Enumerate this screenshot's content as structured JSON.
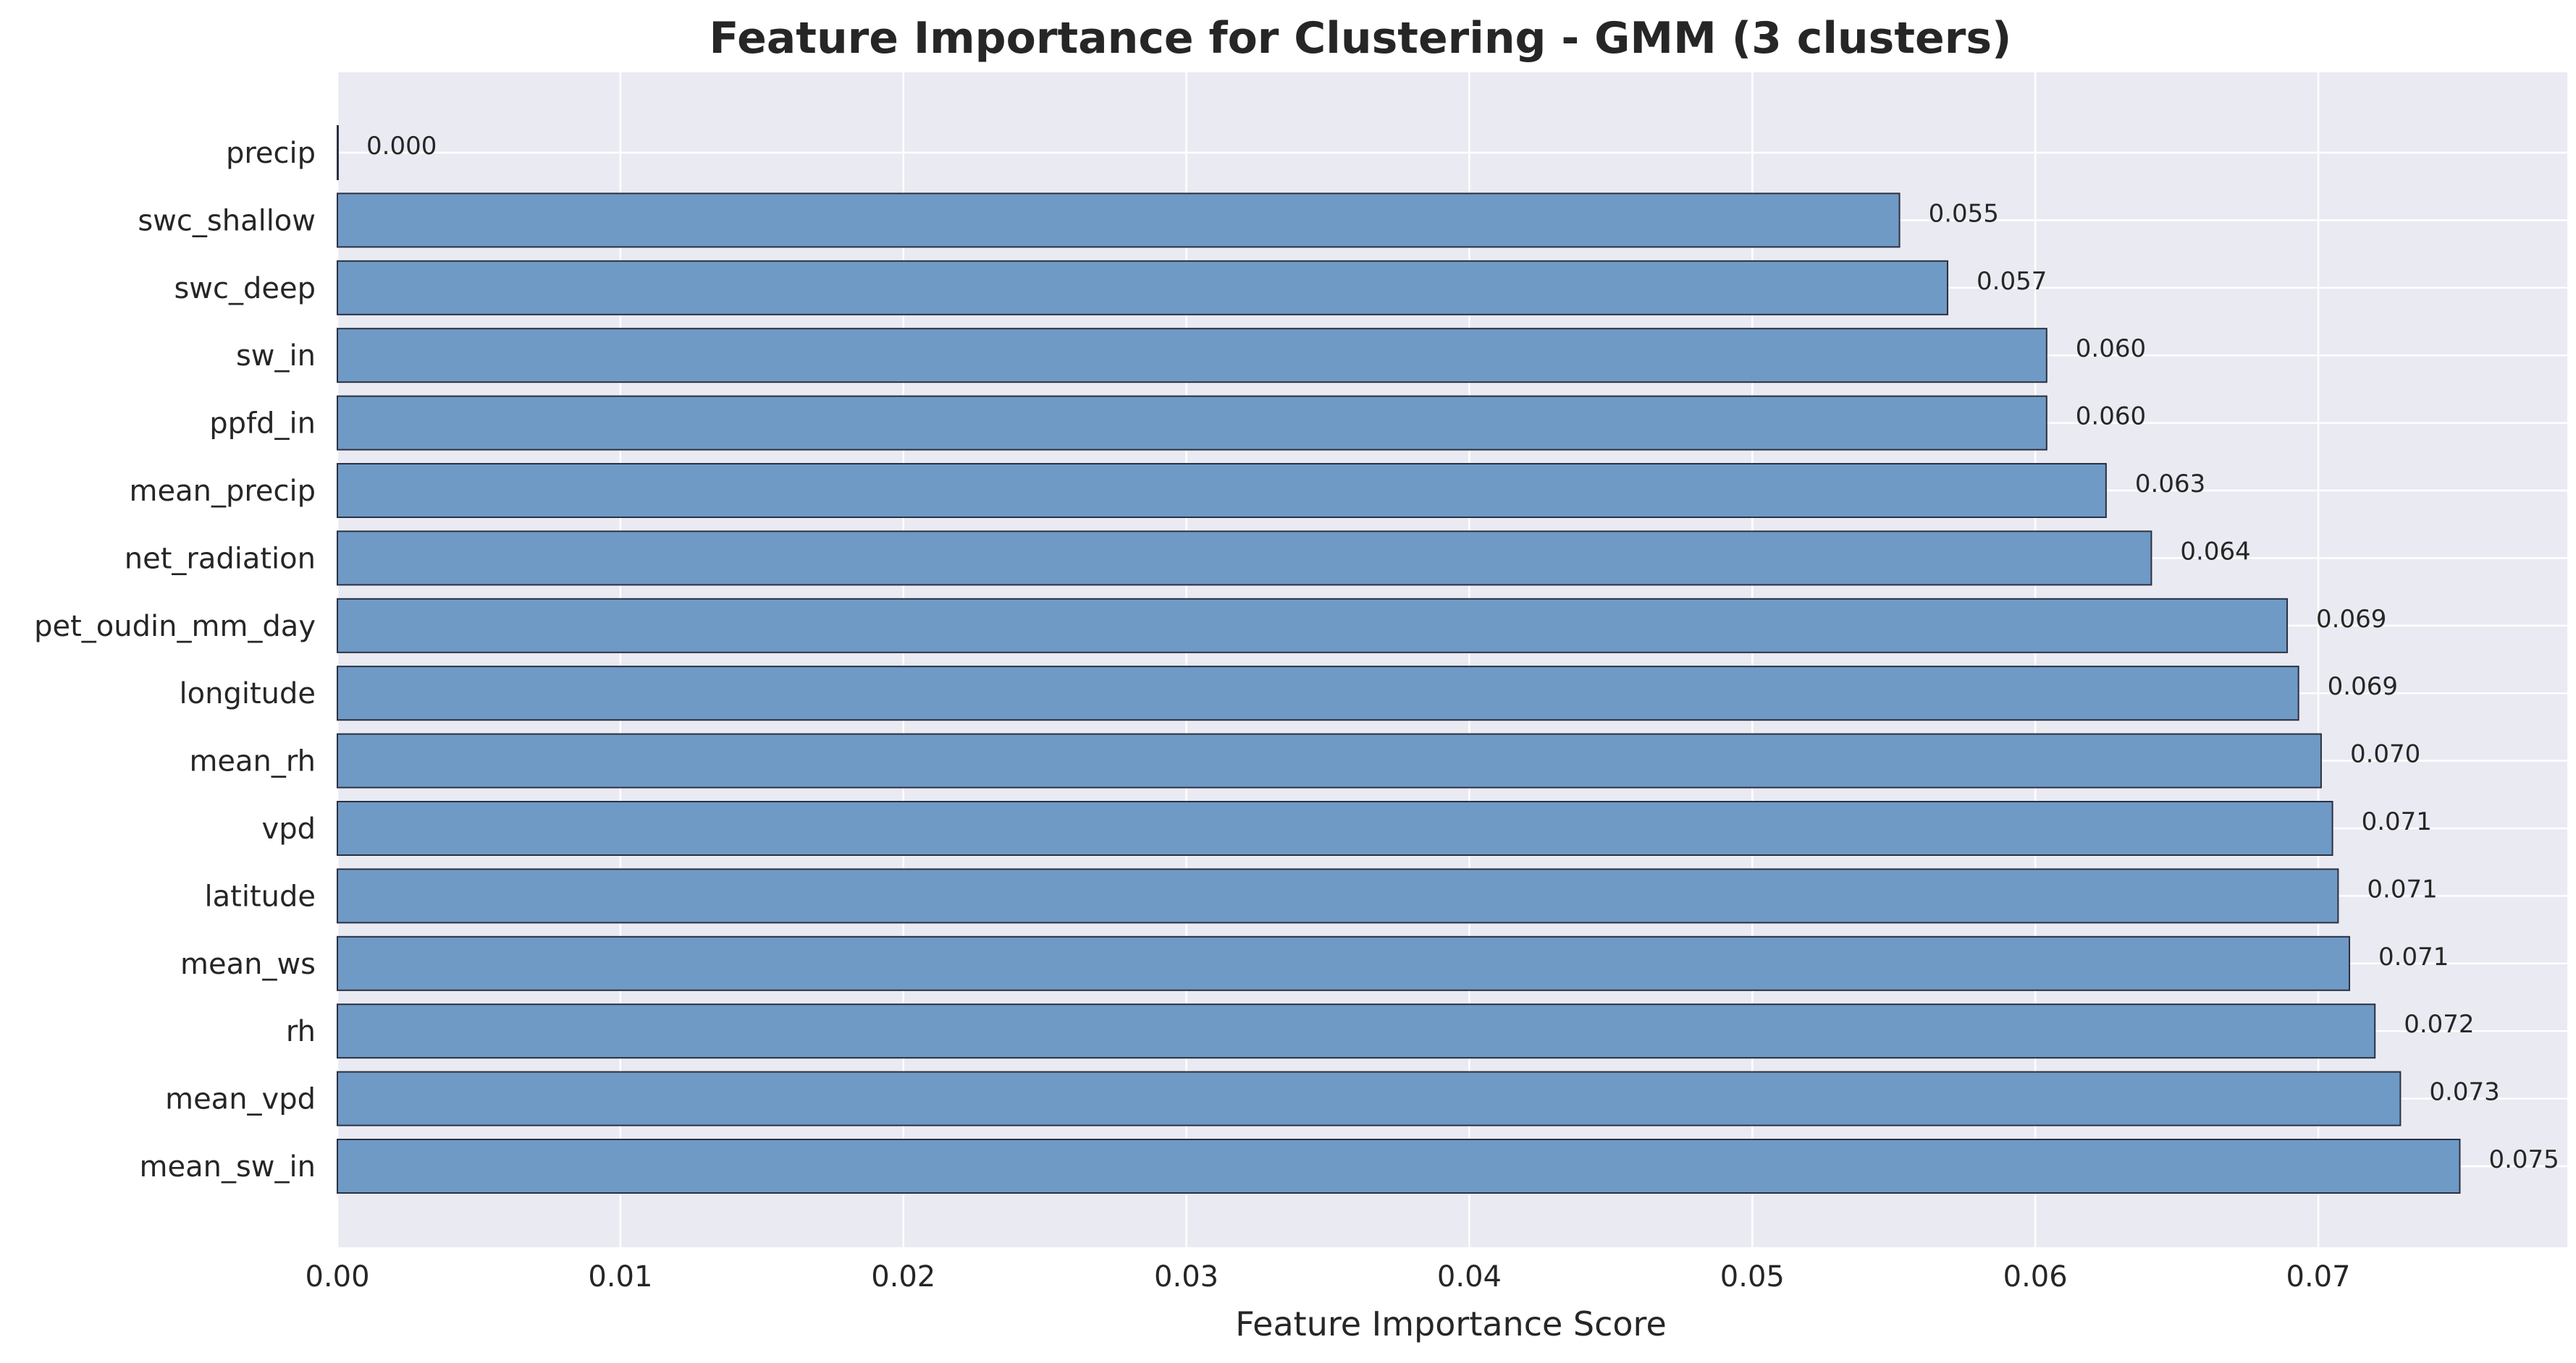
{
  "chart_data": {
    "type": "bar",
    "orientation": "horizontal",
    "title": "Feature Importance for Clustering - GMM (3 clusters)",
    "xlabel": "Feature Importance Score",
    "ylabel": "",
    "categories": [
      "precip",
      "swc_shallow",
      "swc_deep",
      "sw_in",
      "ppfd_in",
      "mean_precip",
      "net_radiation",
      "pet_oudin_mm_day",
      "longitude",
      "mean_rh",
      "vpd",
      "latitude",
      "mean_ws",
      "rh",
      "mean_vpd",
      "mean_sw_in"
    ],
    "values": [
      0.0,
      0.0552,
      0.0569,
      0.0604,
      0.0604,
      0.0625,
      0.0641,
      0.0689,
      0.0693,
      0.0701,
      0.0705,
      0.0707,
      0.0711,
      0.072,
      0.0729,
      0.075
    ],
    "value_labels": [
      "0.000",
      "0.055",
      "0.057",
      "0.060",
      "0.060",
      "0.063",
      "0.064",
      "0.069",
      "0.069",
      "0.070",
      "0.071",
      "0.071",
      "0.071",
      "0.072",
      "0.073",
      "0.075"
    ],
    "xticks": [
      0.0,
      0.01,
      0.02,
      0.03,
      0.04,
      0.05,
      0.06,
      0.07
    ],
    "xtick_labels": [
      "0.00",
      "0.01",
      "0.02",
      "0.03",
      "0.04",
      "0.05",
      "0.06",
      "0.07"
    ],
    "xlim": [
      0,
      0.0788
    ],
    "grid": true,
    "bar_color": "#6f9ac6",
    "bar_edge_color": "#2b3040",
    "background_color": "#eaeaf2"
  }
}
